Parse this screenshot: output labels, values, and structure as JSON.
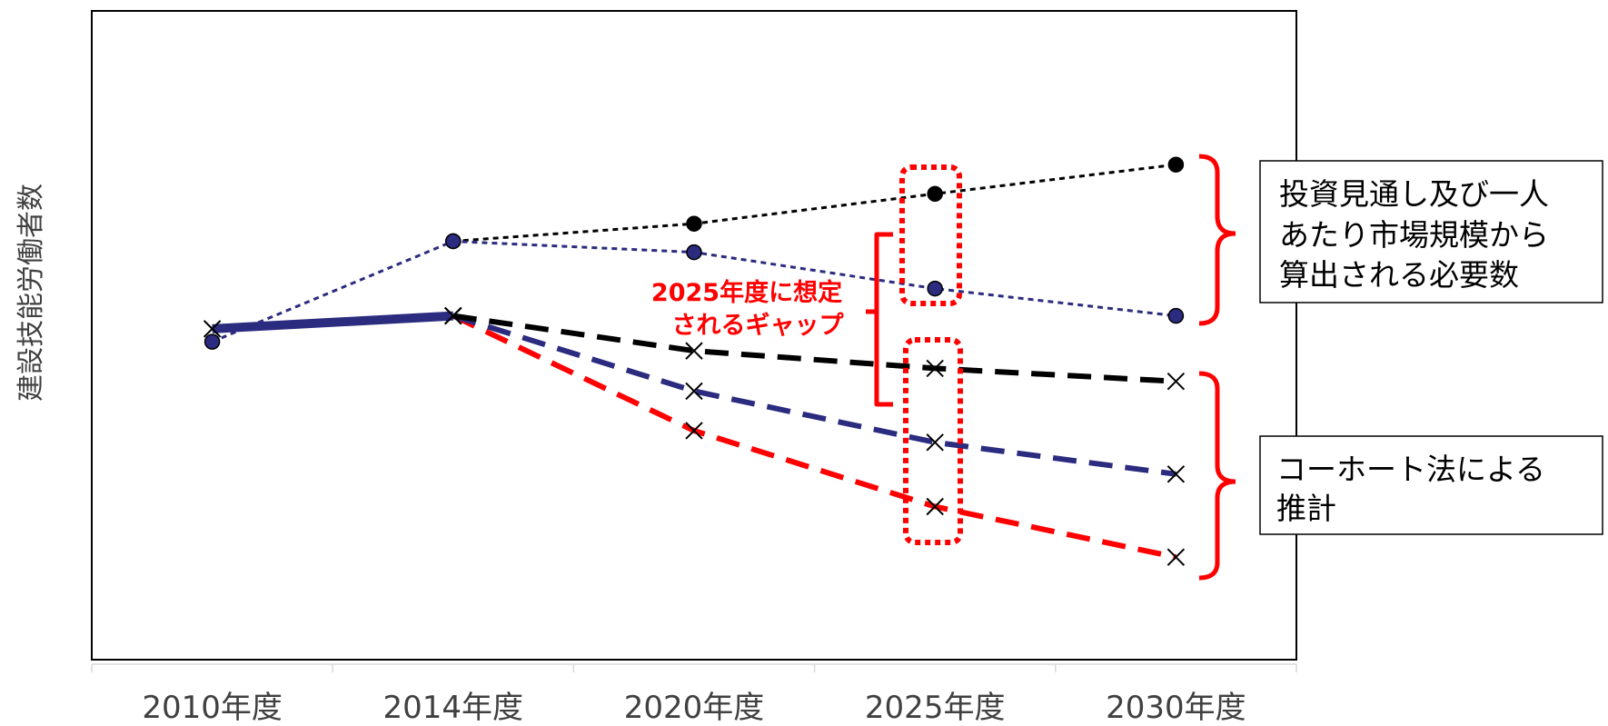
{
  "chart_data": {
    "type": "line",
    "title": "",
    "xlabel": "",
    "ylabel": "建設技能労働者数",
    "ylim": [
      0,
      100
    ],
    "grid": false,
    "categories": [
      "2010年度",
      "2014年度",
      "2020年度",
      "2025年度",
      "2030年度"
    ],
    "series": [
      {
        "key": "req_high",
        "group": "required",
        "color": "#000000",
        "marker": "circle",
        "line": "dotted",
        "values": [
          null,
          64.5,
          67.2,
          71.8,
          76.3
        ]
      },
      {
        "key": "req_low",
        "group": "required",
        "color": "#2b2b7f",
        "marker": "circle",
        "line": "dotted",
        "values": [
          49.0,
          64.5,
          62.8,
          57.2,
          53.0
        ]
      },
      {
        "key": "actual",
        "group": "actual",
        "color": "#2b2b7f",
        "marker": "x",
        "line": "solid",
        "values": [
          51.0,
          53.0,
          null,
          null,
          null
        ]
      },
      {
        "key": "coh_high",
        "group": "cohort",
        "color": "#000000",
        "marker": "x",
        "line": "dashed",
        "values": [
          null,
          53.0,
          47.6,
          44.9,
          42.9
        ]
      },
      {
        "key": "coh_mid",
        "group": "cohort",
        "color": "#2b2b7f",
        "marker": "x",
        "line": "dashed",
        "values": [
          null,
          53.0,
          41.4,
          33.5,
          28.6
        ]
      },
      {
        "key": "coh_low",
        "group": "cohort",
        "color": "#ff0000",
        "marker": "x",
        "line": "dashed",
        "values": [
          null,
          53.0,
          35.3,
          23.6,
          15.8
        ]
      }
    ],
    "annotations": {
      "gap_label": [
        "2025年度に想定",
        "されるギャップ"
      ],
      "required_label": [
        "投資見通し及び一人",
        "あたり市場規模から",
        "算出される必要数"
      ],
      "cohort_label": [
        "コーホート法による",
        "推計"
      ]
    }
  },
  "colors": {
    "red": "#ff0000",
    "navy": "#2b2b7f",
    "black": "#000000"
  }
}
